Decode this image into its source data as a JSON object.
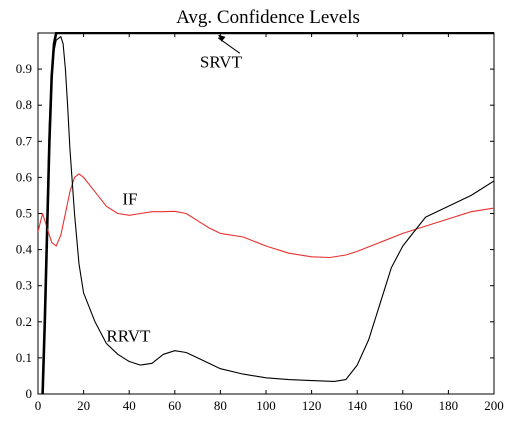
{
  "chart_data": {
    "type": "line",
    "title": "Avg. Confidence Levels",
    "xlabel": "",
    "ylabel": "",
    "xlim": [
      0,
      200
    ],
    "ylim": [
      0,
      1
    ],
    "x_ticks": [
      0,
      20,
      40,
      60,
      80,
      100,
      120,
      140,
      160,
      180,
      200
    ],
    "y_ticks": [
      0,
      0.1,
      0.2,
      0.3,
      0.4,
      0.5,
      0.6,
      0.7,
      0.8,
      0.9
    ],
    "grid": false,
    "series": [
      {
        "name": "SRVT",
        "color": "#000000",
        "style": "thick",
        "points": [
          [
            2,
            0
          ],
          [
            3,
            0.2
          ],
          [
            4,
            0.45
          ],
          [
            5,
            0.7
          ],
          [
            6,
            0.88
          ],
          [
            7,
            0.97
          ],
          [
            8,
            1.0
          ],
          [
            200,
            1.0
          ]
        ]
      },
      {
        "name": "IF",
        "color": "#e8312f",
        "style": "thin",
        "points": [
          [
            0,
            0.45
          ],
          [
            2,
            0.5
          ],
          [
            4,
            0.46
          ],
          [
            6,
            0.42
          ],
          [
            8,
            0.41
          ],
          [
            10,
            0.44
          ],
          [
            12,
            0.5
          ],
          [
            14,
            0.56
          ],
          [
            16,
            0.6
          ],
          [
            18,
            0.61
          ],
          [
            20,
            0.6
          ],
          [
            25,
            0.56
          ],
          [
            30,
            0.52
          ],
          [
            35,
            0.5
          ],
          [
            40,
            0.495
          ],
          [
            45,
            0.5
          ],
          [
            50,
            0.505
          ],
          [
            55,
            0.505
          ],
          [
            60,
            0.506
          ],
          [
            65,
            0.5
          ],
          [
            70,
            0.48
          ],
          [
            75,
            0.46
          ],
          [
            80,
            0.445
          ],
          [
            90,
            0.435
          ],
          [
            100,
            0.41
          ],
          [
            110,
            0.39
          ],
          [
            120,
            0.38
          ],
          [
            128,
            0.378
          ],
          [
            135,
            0.385
          ],
          [
            140,
            0.395
          ],
          [
            150,
            0.42
          ],
          [
            160,
            0.445
          ],
          [
            170,
            0.465
          ],
          [
            180,
            0.485
          ],
          [
            190,
            0.505
          ],
          [
            200,
            0.515
          ]
        ]
      },
      {
        "name": "RRVT",
        "color": "#000000",
        "style": "thin",
        "points": [
          [
            2,
            0
          ],
          [
            3,
            0.2
          ],
          [
            4,
            0.5
          ],
          [
            5,
            0.75
          ],
          [
            6,
            0.88
          ],
          [
            7,
            0.95
          ],
          [
            8,
            0.98
          ],
          [
            10,
            0.99
          ],
          [
            11,
            0.97
          ],
          [
            12,
            0.9
          ],
          [
            13,
            0.8
          ],
          [
            14,
            0.68
          ],
          [
            16,
            0.5
          ],
          [
            18,
            0.36
          ],
          [
            20,
            0.28
          ],
          [
            25,
            0.2
          ],
          [
            30,
            0.14
          ],
          [
            35,
            0.11
          ],
          [
            40,
            0.09
          ],
          [
            45,
            0.08
          ],
          [
            50,
            0.085
          ],
          [
            55,
            0.11
          ],
          [
            60,
            0.12
          ],
          [
            65,
            0.115
          ],
          [
            70,
            0.1
          ],
          [
            80,
            0.07
          ],
          [
            90,
            0.055
          ],
          [
            100,
            0.045
          ],
          [
            110,
            0.04
          ],
          [
            120,
            0.037
          ],
          [
            130,
            0.035
          ],
          [
            135,
            0.04
          ],
          [
            140,
            0.08
          ],
          [
            145,
            0.15
          ],
          [
            150,
            0.25
          ],
          [
            155,
            0.35
          ],
          [
            160,
            0.41
          ],
          [
            165,
            0.45
          ],
          [
            170,
            0.49
          ],
          [
            180,
            0.52
          ],
          [
            190,
            0.55
          ],
          [
            200,
            0.59
          ]
        ]
      }
    ],
    "annotations": [
      {
        "text": "SRVT",
        "x": 71,
        "y": 0.905,
        "arrow_to": [
          79,
          0.995
        ]
      },
      {
        "text": "IF",
        "x": 37,
        "y": 0.525
      },
      {
        "text": "RRVT",
        "x": 30,
        "y": 0.145
      }
    ]
  }
}
